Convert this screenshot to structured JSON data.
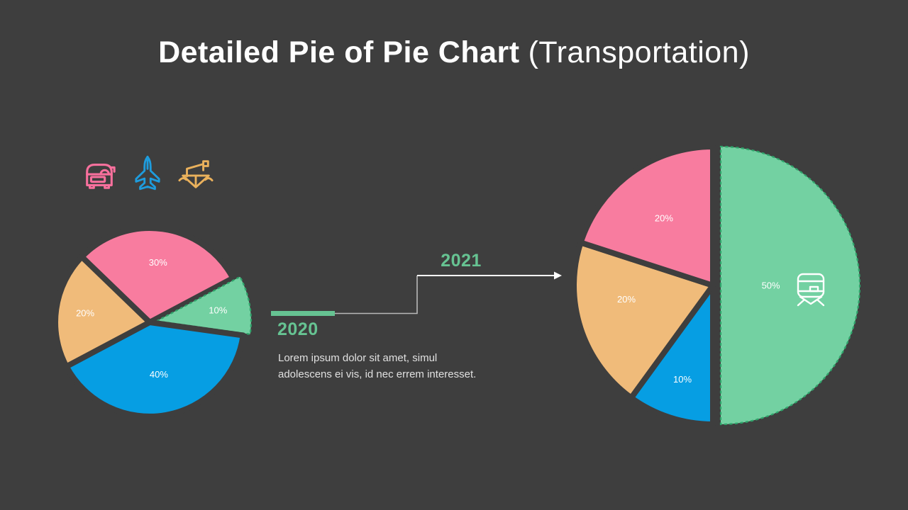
{
  "slide_title": {
    "bold": "Detailed Pie of Pie Chart",
    "regular": "(Transportation)"
  },
  "colors": {
    "background": "#3E3E3E",
    "pink": "#F87C9F",
    "blue": "#069EE3",
    "orange": "#F0BB7A",
    "green": "#73D1A2",
    "green_dashed_border": "#2FA56B",
    "accent_green": "#66C392",
    "label_white": "#FFFFFF",
    "text_soft": "#E0E0E0",
    "connector_gray": "#B9B9B9",
    "connector_white": "#FFFFFF",
    "icon_pink": "#F8709D",
    "icon_blue": "#1E9CDD",
    "icon_orange": "#EAB15C"
  },
  "legend_icons": [
    {
      "name": "car-icon",
      "color_key": "icon_pink"
    },
    {
      "name": "plane-icon",
      "color_key": "icon_blue"
    },
    {
      "name": "boat-icon",
      "color_key": "icon_orange"
    }
  ],
  "middle": {
    "year_from": "2020",
    "year_to": "2021",
    "description_lines": [
      "Lorem ipsum dolor sit amet,  simul",
      "adolescens ei vis, id nec errem  interesset."
    ]
  },
  "chart_data": [
    {
      "type": "pie",
      "name": "pie-2020",
      "title": "2020",
      "start_angle": 136,
      "direction": "clockwise",
      "slices": [
        {
          "display": "30%",
          "value": 30,
          "color_key": "pink",
          "label_r": 0.64
        },
        {
          "display": "10%",
          "value": 10,
          "color_key": "green",
          "label_r": 0.66,
          "exploded": true,
          "dashed": true
        },
        {
          "display": "40%",
          "value": 40,
          "color_key": "blue",
          "label_r": 0.56
        },
        {
          "display": "20%",
          "value": 20,
          "color_key": "orange",
          "label_r": 0.69
        }
      ]
    },
    {
      "type": "pie",
      "name": "pie-2021",
      "title": "2021",
      "start_angle": 90,
      "direction": "clockwise",
      "slices": [
        {
          "display": "50%",
          "value": 50,
          "color_key": "green",
          "label_r": 0.36,
          "exploded": true,
          "dashed": true,
          "icon": "train-icon"
        },
        {
          "display": "10%",
          "value": 10,
          "color_key": "blue",
          "label_r": 0.71
        },
        {
          "display": "20%",
          "value": 20,
          "color_key": "orange",
          "label_r": 0.63,
          "label_angle": 189
        },
        {
          "display": "20%",
          "value": 20,
          "color_key": "pink",
          "label_r": 0.6
        }
      ]
    }
  ]
}
